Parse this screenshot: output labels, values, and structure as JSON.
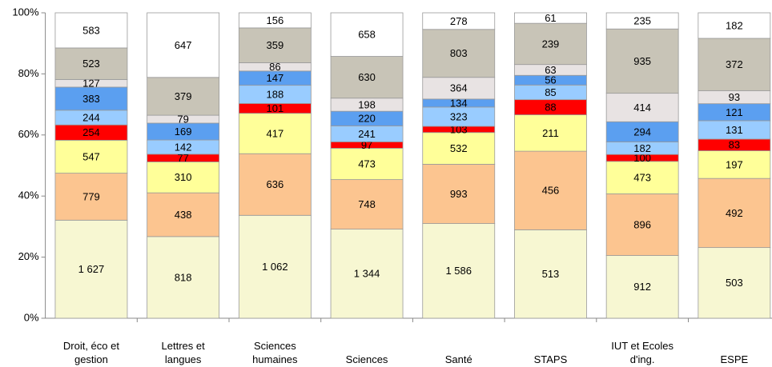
{
  "chart_data": {
    "type": "stacked_bar_100",
    "categories": [
      "Droit, éco et gestion",
      "Lettres et langues",
      "Sciences humaines",
      "Sciences",
      "Santé",
      "STAPS",
      "IUT et Ecoles d'ing.",
      "ESPE"
    ],
    "series": [
      {
        "color": "#f7f7d2",
        "values": [
          1627,
          818,
          1062,
          1344,
          1586,
          513,
          912,
          503
        ],
        "value_labels": [
          "1 627",
          "818",
          "1 062",
          "1 344",
          "1 586",
          "513",
          "912",
          "503"
        ]
      },
      {
        "color": "#fcc590",
        "values": [
          779,
          438,
          636,
          748,
          993,
          456,
          896,
          492
        ]
      },
      {
        "color": "#ffff99",
        "values": [
          547,
          310,
          417,
          473,
          532,
          211,
          473,
          197
        ]
      },
      {
        "color": "#ff0000",
        "values": [
          254,
          77,
          101,
          97,
          103,
          88,
          100,
          83
        ]
      },
      {
        "color": "#99ccff",
        "values": [
          244,
          142,
          188,
          241,
          323,
          85,
          182,
          131
        ]
      },
      {
        "color": "#5b9ff0",
        "values": [
          383,
          169,
          147,
          220,
          134,
          56,
          294,
          121
        ]
      },
      {
        "color": "#e8e3e3",
        "values": [
          127,
          79,
          86,
          198,
          364,
          63,
          414,
          93
        ]
      },
      {
        "color": "#c8c4b7",
        "values": [
          523,
          379,
          359,
          630,
          803,
          239,
          935,
          372
        ]
      },
      {
        "color": "#ffffff",
        "values": [
          583,
          647,
          156,
          658,
          278,
          61,
          235,
          182
        ]
      }
    ],
    "ylim": [
      0,
      100
    ],
    "yticks": [
      {
        "value": 0,
        "label": "0%"
      },
      {
        "value": 20,
        "label": "20%"
      },
      {
        "value": 40,
        "label": "40%"
      },
      {
        "value": 60,
        "label": "60%"
      },
      {
        "value": 80,
        "label": "80%"
      },
      {
        "value": 100,
        "label": "100%"
      }
    ]
  }
}
